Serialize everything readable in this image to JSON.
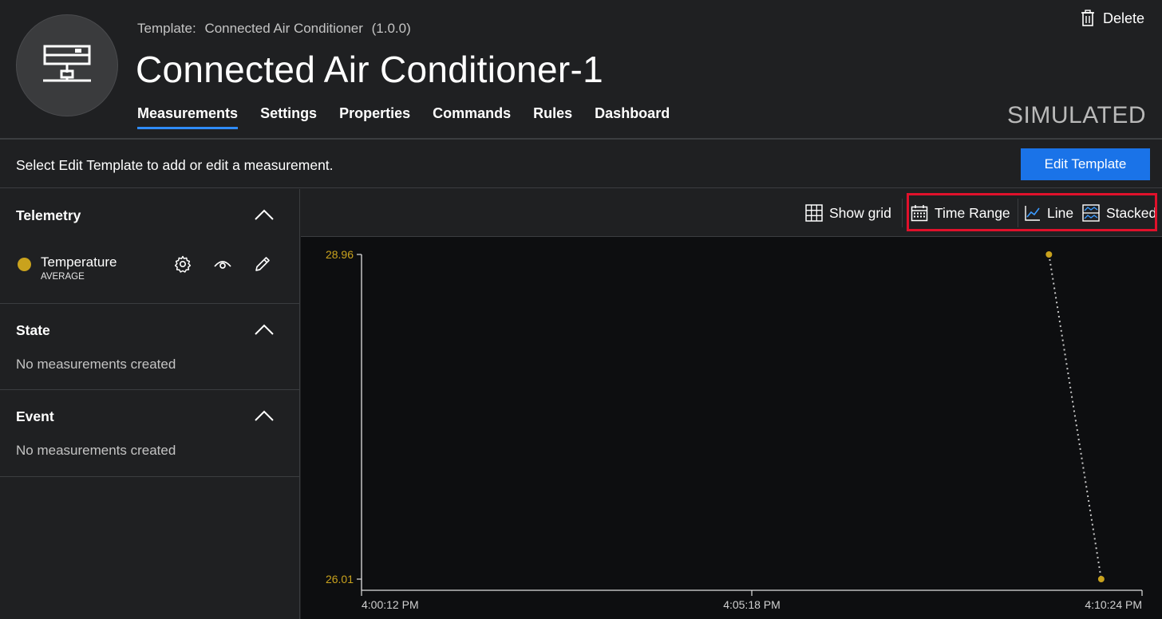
{
  "header": {
    "template_label": "Template:",
    "template_name": "Connected Air Conditioner",
    "template_version": "(1.0.0)",
    "device_name": "Connected Air Conditioner-1",
    "device_icon": "device-icon",
    "status": "SIMULATED",
    "delete_label": "Delete",
    "tabs": [
      {
        "label": "Measurements",
        "active": true
      },
      {
        "label": "Settings"
      },
      {
        "label": "Properties"
      },
      {
        "label": "Commands"
      },
      {
        "label": "Rules"
      },
      {
        "label": "Dashboard"
      }
    ]
  },
  "infobar": {
    "message": "Select Edit Template to add or edit a measurement.",
    "edit_template_label": "Edit Template"
  },
  "sidebar": {
    "sections": [
      {
        "title": "Telemetry",
        "items": [
          {
            "name": "Temperature",
            "aggregation": "AVERAGE",
            "color": "#c9a21d"
          }
        ]
      },
      {
        "title": "State",
        "empty_text": "No measurements created"
      },
      {
        "title": "Event",
        "empty_text": "No measurements created"
      }
    ]
  },
  "toolbar": {
    "show_grid_label": "Show grid",
    "time_range_label": "Time Range",
    "line_label": "Line",
    "stacked_label": "Stacked"
  },
  "colors": {
    "accent": "#1a73e8",
    "series": "#c9a21d",
    "highlight": "#e0112b"
  },
  "chart_data": {
    "type": "line",
    "x_ticks": [
      "4:00:12 PM",
      "4:05:18 PM",
      "4:10:24 PM"
    ],
    "y_ticks": [
      "28.96",
      "26.01"
    ],
    "ylim": [
      26.01,
      28.96
    ],
    "series": [
      {
        "color": "#c9a21d",
        "points": [
          {
            "x": "4:09:11 PM",
            "y": 28.96
          },
          {
            "x": "4:09:52 PM",
            "y": 26.01
          }
        ]
      }
    ]
  }
}
